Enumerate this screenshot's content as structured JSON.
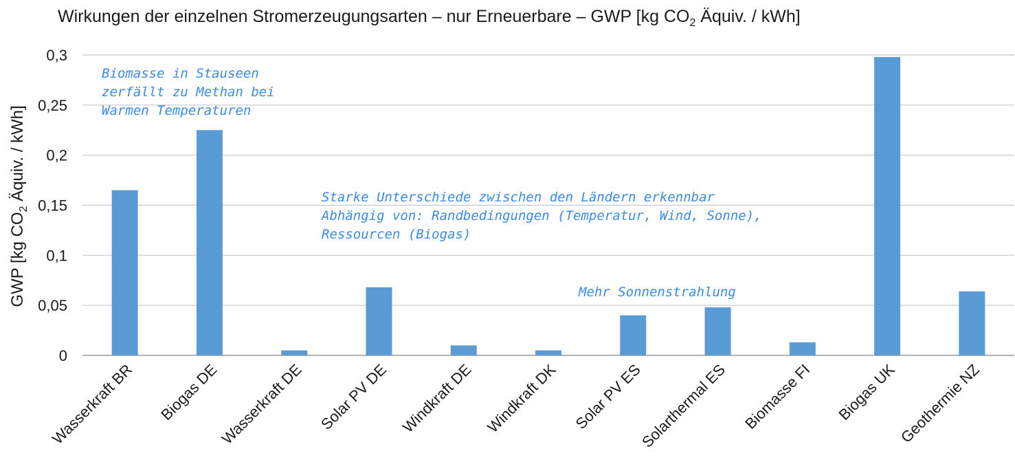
{
  "chart_data": {
    "type": "bar",
    "title_parts": {
      "pre": "Wirkungen der einzelnen Stromerzeugungsarten – nur Erneuerbare – GWP [kg CO",
      "sub": "2",
      "post": " Äquiv. / kWh]"
    },
    "ylabel_parts": {
      "pre": "GWP [kg CO",
      "sub": "2",
      "post": " Äquiv. / kWh]"
    },
    "categories": [
      "Wasserkraft BR",
      "Biogas DE",
      "Wasserkraft DE",
      "Solar PV DE",
      "Windkraft DE",
      "Windkraft DK",
      "Solar PV ES",
      "Solarthermal ES",
      "Biomasse FI",
      "Biogas UK",
      "Geothermie NZ"
    ],
    "values": [
      0.165,
      0.225,
      0.005,
      0.068,
      0.01,
      0.005,
      0.04,
      0.048,
      0.013,
      0.298,
      0.064
    ],
    "ylim": [
      0,
      0.3
    ],
    "yticks": [
      0,
      0.05,
      0.1,
      0.15,
      0.2,
      0.25,
      0.3
    ],
    "ytick_labels": [
      "0",
      "0,05",
      "0,1",
      "0,15",
      "0,2",
      "0,25",
      "0,3"
    ],
    "grid": true,
    "bar_color": "#5b9bd5",
    "annotations": [
      {
        "lines": [
          "Biomasse in Stauseen",
          "zerfällt zu Methan bei",
          "Warmen Temperaturen"
        ],
        "anchor_category": "Wasserkraft BR"
      },
      {
        "lines": [
          "Starke Unterschiede zwischen den Ländern erkennbar",
          "Abhängig von: Randbedingungen (Temperatur, Wind, Sonne),",
          "Ressourcen (Biogas)"
        ],
        "anchor_category": "Solar PV DE"
      },
      {
        "lines": [
          "Mehr Sonnenstrahlung"
        ],
        "anchor_category": "Solar PV ES"
      }
    ],
    "annotation_color": "#3a8ae6"
  }
}
